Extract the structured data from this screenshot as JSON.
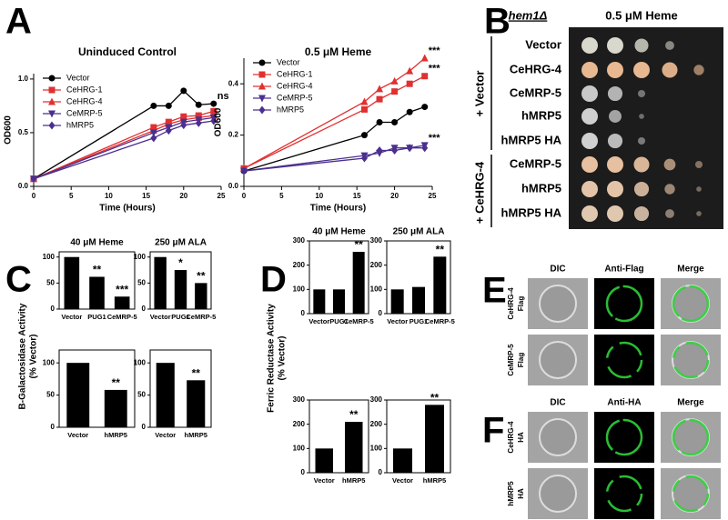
{
  "figure": {
    "labels": [
      "A",
      "B",
      "C",
      "D",
      "E",
      "F"
    ],
    "c_ylabel": [
      "B-Galactosidase Activity",
      "(% Vector)"
    ],
    "d_ylabel": [
      "Ferric Reductase Activity",
      "(% Vector)"
    ]
  },
  "plate": {
    "genotype": "hem1Δ",
    "condition": "0.5 μM Heme",
    "rows": [
      "Vector",
      "CeHRG-4",
      "CeMRP-5",
      "hMRP5",
      "hMRP5 HA",
      "CeMRP-5",
      "hMRP5",
      "hMRP5 HA"
    ],
    "groups": [
      "+ Vector",
      "+ CeHRG-4"
    ]
  },
  "micro_e": {
    "columns": [
      "DIC",
      "Anti-Flag",
      "Merge"
    ],
    "rows": [
      [
        "CeHRG-4",
        "Flag"
      ],
      [
        "CeMRP-5",
        "Flag"
      ]
    ]
  },
  "micro_f": {
    "columns": [
      "DIC",
      "Anti-HA",
      "Merge"
    ],
    "rows": [
      [
        "CeHRG-4",
        "HA"
      ],
      [
        "hMRP5",
        "HA"
      ]
    ]
  },
  "chart_data": [
    {
      "type": "line",
      "title": "Uninduced  Control",
      "x_label": "Time (Hours)",
      "y_label": "OD600",
      "x": [
        0,
        16,
        18,
        20,
        22,
        24
      ],
      "xlim": [
        0,
        25
      ],
      "xticks": [
        0,
        5,
        10,
        15,
        20,
        25
      ],
      "ylim": [
        0,
        1.05
      ],
      "yticks": [
        {
          "value": 0,
          "label": "0.0"
        },
        {
          "value": 0.5,
          "label": "0.5"
        },
        {
          "value": 1,
          "label": "1.0"
        }
      ],
      "series": [
        {
          "name": "Vector",
          "color": "#000000",
          "marker": "circle",
          "values": [
            0.07,
            0.75,
            0.75,
            0.89,
            0.76,
            0.77
          ],
          "annotation": "ns"
        },
        {
          "name": "CeHRG-1",
          "color": "#e03030",
          "marker": "square",
          "values": [
            0.07,
            0.55,
            0.6,
            0.65,
            0.66,
            0.7
          ]
        },
        {
          "name": "CeHRG-4",
          "color": "#e03030",
          "marker": "triangle",
          "values": [
            0.07,
            0.52,
            0.58,
            0.62,
            0.64,
            0.66
          ]
        },
        {
          "name": "CeMRP-5",
          "color": "#4b2f8f",
          "marker": "triangle-down",
          "values": [
            0.07,
            0.5,
            0.55,
            0.6,
            0.62,
            0.64
          ]
        },
        {
          "name": "hMRP5",
          "color": "#4b2f8f",
          "marker": "diamond",
          "values": [
            0.07,
            0.45,
            0.52,
            0.57,
            0.59,
            0.61
          ]
        }
      ]
    },
    {
      "type": "line",
      "title": "0.5 μM Heme",
      "x_label": "Time (Hours)",
      "y_label": "OD600",
      "x": [
        0,
        16,
        18,
        20,
        22,
        24
      ],
      "xlim": [
        0,
        25
      ],
      "xticks": [
        0,
        5,
        10,
        15,
        20,
        25
      ],
      "ylim": [
        0,
        0.5
      ],
      "yticks": [
        {
          "value": 0,
          "label": "0.0"
        },
        {
          "value": 0.2,
          "label": "0.2"
        },
        {
          "value": 0.4,
          "label": "0.4"
        }
      ],
      "series": [
        {
          "name": "Vector",
          "color": "#000000",
          "marker": "circle",
          "values": [
            0.06,
            0.2,
            0.25,
            0.25,
            0.29,
            0.31
          ]
        },
        {
          "name": "CeHRG-1",
          "color": "#e03030",
          "marker": "square",
          "values": [
            0.07,
            0.3,
            0.34,
            0.37,
            0.4,
            0.43
          ],
          "annotation": "***"
        },
        {
          "name": "CeHRG-4",
          "color": "#e03030",
          "marker": "triangle",
          "values": [
            0.07,
            0.33,
            0.38,
            0.41,
            0.45,
            0.5
          ],
          "annotation": "***"
        },
        {
          "name": "CeMRP-5",
          "color": "#4b2f8f",
          "marker": "triangle-down",
          "values": [
            0.06,
            0.12,
            0.13,
            0.15,
            0.15,
            0.16
          ],
          "annotation": "***"
        },
        {
          "name": "hMRP5",
          "color": "#4b2f8f",
          "marker": "diamond",
          "values": [
            0.06,
            0.11,
            0.14,
            0.14,
            0.15,
            0.15
          ]
        }
      ]
    },
    {
      "type": "bar",
      "title": "40 μM Heme",
      "categories": [
        "Vector",
        "PUG1",
        "CeMRP-5"
      ],
      "values": [
        100,
        62,
        24
      ],
      "annotations": [
        null,
        "**",
        "***"
      ],
      "color": "#000000",
      "ylim": [
        0,
        110
      ],
      "yticks": [
        0,
        50,
        100
      ]
    },
    {
      "type": "bar",
      "title": "250 μM ALA",
      "categories": [
        "Vector",
        "PUG1",
        "CeMRP-5"
      ],
      "values": [
        100,
        75,
        50
      ],
      "annotations": [
        null,
        "*",
        "**"
      ],
      "color": "#000000",
      "ylim": [
        0,
        110
      ],
      "yticks": [
        0,
        50,
        100
      ]
    },
    {
      "type": "bar",
      "categories": [
        "Vector",
        "hMRP5"
      ],
      "values": [
        100,
        58
      ],
      "annotations": [
        null,
        "**"
      ],
      "color": "#000000",
      "ylim": [
        0,
        120
      ],
      "yticks": [
        0,
        50,
        100
      ]
    },
    {
      "type": "bar",
      "categories": [
        "Vector",
        "hMRP5"
      ],
      "values": [
        100,
        73
      ],
      "annotations": [
        null,
        "**"
      ],
      "color": "#000000",
      "ylim": [
        0,
        120
      ],
      "yticks": [
        0,
        50,
        100
      ]
    },
    {
      "type": "bar",
      "title": "40 μM Heme",
      "categories": [
        "Vector",
        "PUG1",
        "CeMRP-5"
      ],
      "values": [
        100,
        100,
        255
      ],
      "annotations": [
        null,
        null,
        "**"
      ],
      "color": "#000000",
      "ylim": [
        0,
        300
      ],
      "yticks": [
        0,
        100,
        200,
        300
      ]
    },
    {
      "type": "bar",
      "title": "250 μM ALA",
      "categories": [
        "Vector",
        "PUG1",
        "CeMRP-5"
      ],
      "values": [
        100,
        110,
        235
      ],
      "annotations": [
        null,
        null,
        "**"
      ],
      "color": "#000000",
      "ylim": [
        0,
        300
      ],
      "yticks": [
        0,
        100,
        200,
        300
      ]
    },
    {
      "type": "bar",
      "categories": [
        "Vector",
        "hMRP5"
      ],
      "values": [
        100,
        210
      ],
      "annotations": [
        null,
        "**"
      ],
      "color": "#000000",
      "ylim": [
        0,
        300
      ],
      "yticks": [
        0,
        100,
        200,
        300
      ]
    },
    {
      "type": "bar",
      "categories": [
        "Vector",
        "hMRP5"
      ],
      "values": [
        100,
        280
      ],
      "annotations": [
        null,
        "**"
      ],
      "color": "#000000",
      "ylim": [
        0,
        300
      ],
      "yticks": [
        0,
        100,
        200,
        300
      ]
    }
  ]
}
